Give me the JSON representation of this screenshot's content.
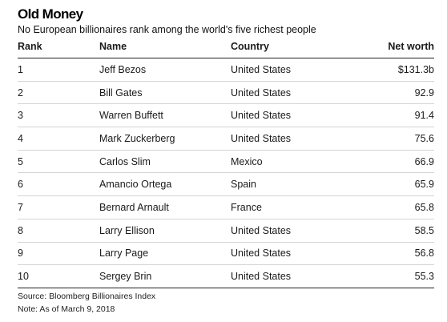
{
  "header": {
    "title": "Old Money",
    "subtitle": "No European billionaires rank among the world's five richest people"
  },
  "chart_data": {
    "type": "table",
    "columns": [
      "Rank",
      "Name",
      "Country",
      "Net worth"
    ],
    "rows": [
      {
        "rank": "1",
        "name": "Jeff Bezos",
        "country": "United States",
        "net_worth": "$131.3b"
      },
      {
        "rank": "2",
        "name": "Bill Gates",
        "country": "United States",
        "net_worth": "92.9"
      },
      {
        "rank": "3",
        "name": "Warren Buffett",
        "country": "United States",
        "net_worth": "91.4"
      },
      {
        "rank": "4",
        "name": "Mark Zuckerberg",
        "country": "United States",
        "net_worth": "75.6"
      },
      {
        "rank": "5",
        "name": "Carlos Slim",
        "country": "Mexico",
        "net_worth": "66.9"
      },
      {
        "rank": "6",
        "name": "Amancio Ortega",
        "country": "Spain",
        "net_worth": "65.9"
      },
      {
        "rank": "7",
        "name": "Bernard Arnault",
        "country": "France",
        "net_worth": "65.8"
      },
      {
        "rank": "8",
        "name": "Larry Ellison",
        "country": "United States",
        "net_worth": "58.5"
      },
      {
        "rank": "9",
        "name": "Larry Page",
        "country": "United States",
        "net_worth": "56.8"
      },
      {
        "rank": "10",
        "name": "Sergey Brin",
        "country": "United States",
        "net_worth": "55.3"
      }
    ]
  },
  "footer": {
    "source": "Source: Bloomberg Billionaires Index",
    "note": "Note: As of March 9, 2018"
  }
}
